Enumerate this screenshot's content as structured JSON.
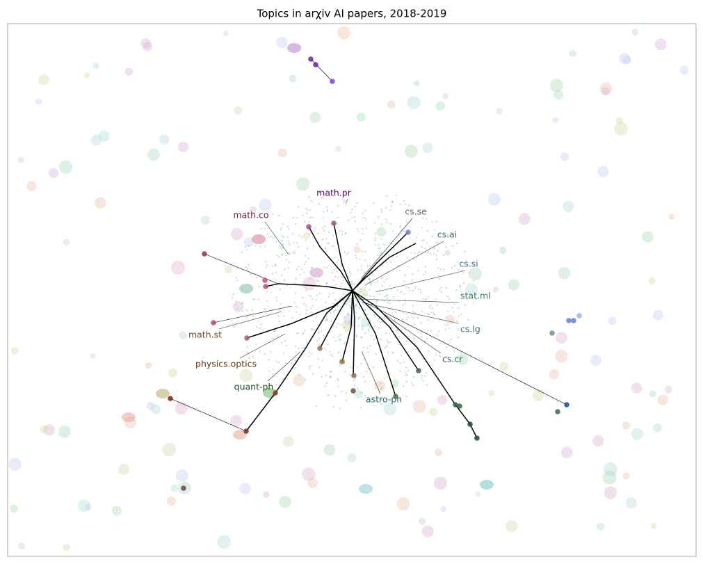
{
  "title": "Topics in arχiv AI papers, 2018-2019",
  "labels": [
    "math.pr",
    "math.co",
    "cs.se",
    "cs.ai",
    "cs.si",
    "stat.ml",
    "cs.lg",
    "cs.cr",
    "math.st",
    "physics.optics",
    "quant-ph",
    "astro-ph"
  ]
}
